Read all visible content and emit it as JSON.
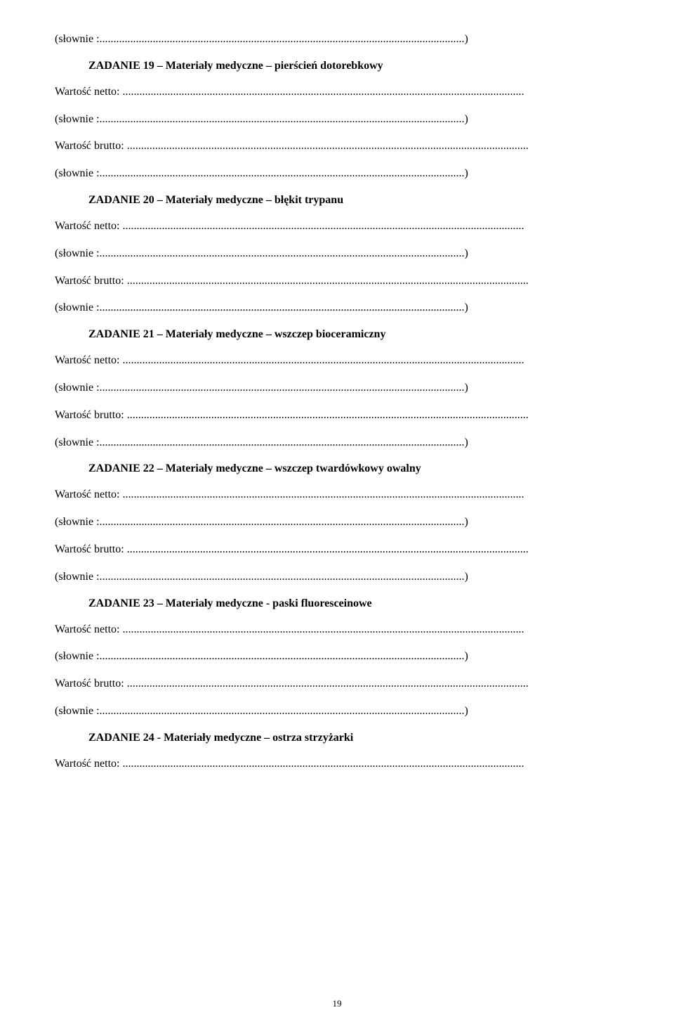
{
  "labels": {
    "slownie": "(słownie :",
    "wartosc_netto": "Wartość netto:",
    "wartosc_brutto": "Wartość brutto:",
    "dots_full": "...............................................................................................................................................",
    "dots_after": "...............................................................................................................................",
    "dots_paren": "...)"
  },
  "tasks": [
    {
      "title": "ZADANIE 19 – Materiały medyczne – pierścień dotorebkowy"
    },
    {
      "title": "ZADANIE 20 – Materiały medyczne – błękit trypanu"
    },
    {
      "title": "ZADANIE 21 – Materiały medyczne – wszczep bioceramiczny"
    },
    {
      "title": "ZADANIE 22 – Materiały medyczne – wszczep twardówkowy owalny"
    },
    {
      "title": "ZADANIE 23 – Materiały medyczne - paski fluoresceinowe"
    },
    {
      "title": "ZADANIE 24 - Materiały medyczne – ostrza strzyżarki"
    }
  ],
  "page_number": "19"
}
